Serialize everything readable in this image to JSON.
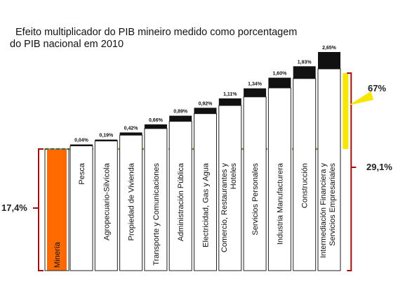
{
  "title_line1": "Efeito multiplicador do PIB mineiro medido como porcentagem",
  "title_line2": "do PIB nacional em 2010",
  "chart_data": {
    "type": "bar",
    "subtype": "waterfall",
    "base_category": "Minería",
    "base_value": 17.4,
    "base_label": "17,4%",
    "categories": [
      "Pesca",
      "Agropecuario-Silvícola",
      "Propiedad de Vivienda",
      "Transporte y Comunicaciones",
      "Administración Pública",
      "Electricidad, Gas y Agua",
      "Comercio, Restaurantes y Hoteles",
      "Servicios Personales",
      "Industria Manufacturera",
      "Construcción",
      "Intermediación Financiera y Servicios Empresariales"
    ],
    "label_lines": [
      [
        "Pesca"
      ],
      [
        "Agropecuario-Silvícola"
      ],
      [
        "Propiedad de Vivienda"
      ],
      [
        "Transporte y Comunicaciones"
      ],
      [
        "Administración Pública"
      ],
      [
        "Electricidad, Gas y Agua"
      ],
      [
        "Comercio, Restaurantes y",
        "Hoteles"
      ],
      [
        "Servicios Personales"
      ],
      [
        "Industria Manufacturera"
      ],
      [
        "Construcción"
      ],
      [
        "Intermediación Financiera y",
        "Servicios Empresariales"
      ]
    ],
    "values": [
      0.04,
      0.19,
      0.42,
      0.66,
      0.89,
      0.92,
      1.11,
      1.34,
      1.6,
      1.93,
      2.65
    ],
    "value_labels": [
      "0,04%",
      "0,19%",
      "0,42%",
      "0,66%",
      "0,89%",
      "0,92%",
      "1,11%",
      "1,34%",
      "1,60%",
      "1,93%",
      "2,65%"
    ],
    "total_value": 29.1,
    "total_label": "29,1%",
    "multiplier_label": "67%",
    "colors": {
      "base": "#ff6a00",
      "increment": "#111111",
      "multiplier": "#f7e600",
      "bracket": "#a01010",
      "dashed": "#7aa640"
    }
  }
}
